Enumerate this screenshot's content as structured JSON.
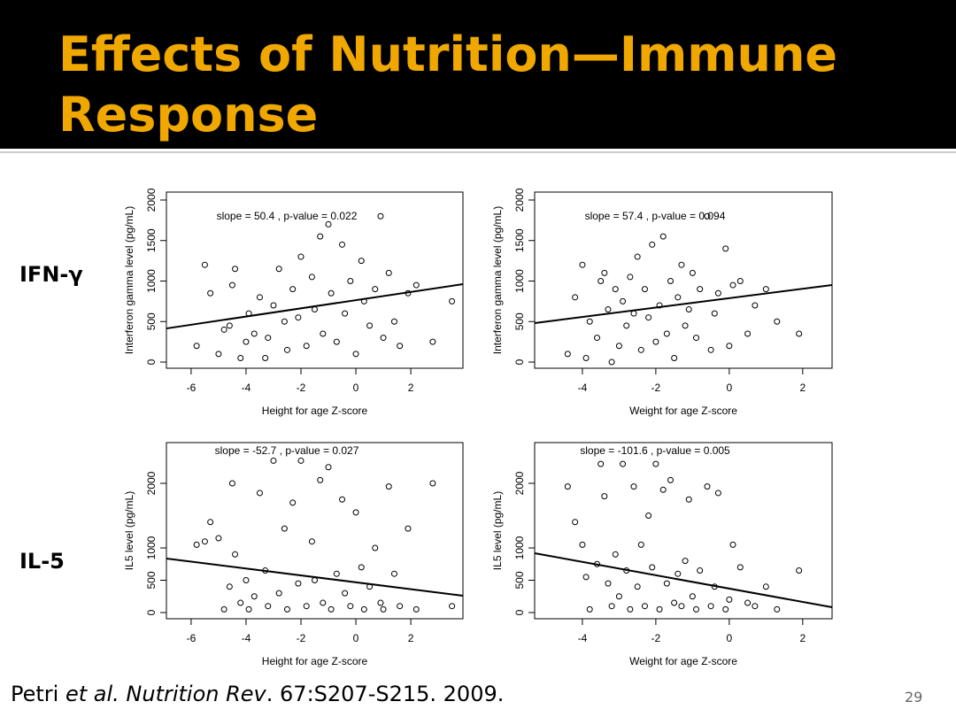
{
  "slide_title": "Effects of Nutrition—Immune Response",
  "row_labels": [
    "IFN-γ",
    "IL-5"
  ],
  "citation": {
    "author": "Petri ",
    "journal": "et al. Nutrition Rev",
    "rest": ". 67:S207-S215. 2009."
  },
  "page_number": "29",
  "chart_data": [
    {
      "type": "scatter",
      "annotation": "slope = 50.4 , p-value = 0.022",
      "x_label": "Height for age Z-score",
      "y_label": "Interferon gamma level (pg/mL)",
      "xlim": [
        -6.9,
        3.9
      ],
      "ylim": [
        -76,
        2098
      ],
      "xticks": [
        -6,
        -4,
        -2,
        0,
        2
      ],
      "yticks": [
        0,
        500,
        1000,
        1500,
        2000
      ],
      "x": [
        -5.8,
        -5.5,
        -5.3,
        -5.0,
        -4.8,
        -4.6,
        -4.5,
        -4.4,
        -4.2,
        -4.0,
        -3.9,
        -3.7,
        -3.5,
        -3.3,
        -3.2,
        -3.0,
        -2.8,
        -2.6,
        -2.5,
        -2.3,
        -2.1,
        -2.0,
        -1.8,
        -1.6,
        -1.5,
        -1.3,
        -1.2,
        -1.0,
        -0.9,
        -0.7,
        -0.5,
        -0.4,
        -0.2,
        0.0,
        0.2,
        0.3,
        0.5,
        0.7,
        0.9,
        1.0,
        1.2,
        1.4,
        1.6,
        1.9,
        2.2,
        2.8,
        3.5
      ],
      "values": [
        200,
        1200,
        850,
        100,
        400,
        450,
        950,
        1150,
        50,
        250,
        600,
        350,
        800,
        50,
        300,
        700,
        1150,
        500,
        150,
        900,
        550,
        1300,
        200,
        1050,
        650,
        1550,
        350,
        1700,
        850,
        250,
        1450,
        600,
        1000,
        100,
        1250,
        750,
        450,
        900,
        1800,
        300,
        1100,
        500,
        200,
        850,
        950,
        250,
        750
      ],
      "fit": {
        "x": [
          -6.9,
          3.9
        ],
        "y": [
          415,
          962
        ]
      }
    },
    {
      "type": "scatter",
      "annotation": "slope = 57.4 , p-value = 0.094",
      "x_label": "Weight for age Z-score",
      "y_label": "Interferon gamma level (pg/mL)",
      "xlim": [
        -5.3,
        2.8
      ],
      "ylim": [
        -76,
        2098
      ],
      "xticks": [
        -4,
        -2,
        0,
        2
      ],
      "yticks": [
        0,
        500,
        1000,
        1500,
        2000
      ],
      "x": [
        -4.4,
        -4.2,
        -4.0,
        -3.9,
        -3.8,
        -3.6,
        -3.5,
        -3.4,
        -3.3,
        -3.2,
        -3.1,
        -3.0,
        -2.9,
        -2.8,
        -2.7,
        -2.6,
        -2.5,
        -2.4,
        -2.3,
        -2.2,
        -2.1,
        -2.0,
        -1.9,
        -1.8,
        -1.7,
        -1.6,
        -1.5,
        -1.4,
        -1.3,
        -1.2,
        -1.1,
        -1.0,
        -0.9,
        -0.8,
        -0.6,
        -0.5,
        -0.4,
        -0.3,
        -0.1,
        0.0,
        0.1,
        0.3,
        0.5,
        0.7,
        1.0,
        1.3,
        1.9
      ],
      "values": [
        100,
        800,
        1200,
        50,
        500,
        300,
        1000,
        1100,
        650,
        0,
        900,
        200,
        750,
        450,
        1050,
        600,
        1300,
        150,
        900,
        550,
        1450,
        250,
        700,
        1550,
        350,
        1000,
        50,
        800,
        1200,
        450,
        650,
        1100,
        300,
        900,
        1800,
        150,
        600,
        850,
        1400,
        200,
        950,
        1000,
        350,
        700,
        900,
        500,
        350
      ],
      "fit": {
        "x": [
          -5.3,
          2.8
        ],
        "y": [
          481,
          951
        ]
      }
    },
    {
      "type": "scatter",
      "annotation": "slope = -52.7 , p-value = 0.027",
      "x_label": "Height for age Z-score",
      "y_label": "IL5 level (pg/mL)",
      "xlim": [
        -6.9,
        3.9
      ],
      "ylim": [
        -96,
        2630
      ],
      "xticks": [
        -6,
        -4,
        -2,
        0,
        2
      ],
      "yticks": [
        0,
        500,
        1000,
        2000
      ],
      "x": [
        -5.8,
        -5.5,
        -5.3,
        -5.0,
        -4.8,
        -4.6,
        -4.5,
        -4.4,
        -4.2,
        -4.0,
        -3.9,
        -3.7,
        -3.5,
        -3.3,
        -3.2,
        -3.0,
        -2.8,
        -2.6,
        -2.5,
        -2.3,
        -2.1,
        -2.0,
        -1.8,
        -1.6,
        -1.5,
        -1.3,
        -1.2,
        -1.0,
        -0.9,
        -0.7,
        -0.5,
        -0.4,
        -0.2,
        0.0,
        0.2,
        0.3,
        0.5,
        0.7,
        0.9,
        1.0,
        1.2,
        1.4,
        1.6,
        1.9,
        2.2,
        2.8,
        3.5
      ],
      "values": [
        1050,
        1100,
        1400,
        1150,
        50,
        400,
        2000,
        900,
        150,
        500,
        50,
        250,
        1850,
        650,
        100,
        2350,
        300,
        1300,
        50,
        1700,
        450,
        2350,
        100,
        1100,
        500,
        2050,
        150,
        2250,
        50,
        600,
        1750,
        300,
        100,
        1550,
        700,
        50,
        400,
        1000,
        150,
        50,
        1950,
        600,
        100,
        1300,
        50,
        2000,
        100
      ],
      "fit": {
        "x": [
          -6.9,
          3.9
        ],
        "y": [
          836,
          260
        ]
      }
    },
    {
      "type": "scatter",
      "annotation": "slope = -101.6 , p-value = 0.005",
      "x_label": "Weight for age Z-score",
      "y_label": "IL5 level (pg/mL)",
      "xlim": [
        -5.3,
        2.8
      ],
      "ylim": [
        -96,
        2630
      ],
      "xticks": [
        -4,
        -2,
        0,
        2
      ],
      "yticks": [
        0,
        500,
        1000,
        2000
      ],
      "x": [
        -4.4,
        -4.2,
        -4.0,
        -3.9,
        -3.8,
        -3.6,
        -3.5,
        -3.4,
        -3.3,
        -3.2,
        -3.1,
        -3.0,
        -2.9,
        -2.8,
        -2.7,
        -2.6,
        -2.5,
        -2.4,
        -2.3,
        -2.2,
        -2.1,
        -2.0,
        -1.9,
        -1.8,
        -1.7,
        -1.6,
        -1.5,
        -1.4,
        -1.3,
        -1.2,
        -1.1,
        -1.0,
        -0.9,
        -0.8,
        -0.6,
        -0.5,
        -0.4,
        -0.3,
        -0.1,
        0.0,
        0.1,
        0.3,
        0.5,
        0.7,
        1.0,
        1.3,
        1.9
      ],
      "values": [
        1950,
        1400,
        1050,
        550,
        50,
        750,
        2300,
        1800,
        450,
        100,
        900,
        250,
        2300,
        650,
        50,
        1950,
        400,
        1050,
        100,
        1500,
        700,
        2300,
        50,
        1900,
        450,
        2050,
        150,
        600,
        100,
        800,
        1750,
        250,
        50,
        650,
        1950,
        100,
        400,
        1850,
        50,
        200,
        1050,
        700,
        150,
        100,
        400,
        50,
        650
      ],
      "fit": {
        "x": [
          -5.3,
          2.8
        ],
        "y": [
          918,
          82
        ]
      }
    }
  ]
}
